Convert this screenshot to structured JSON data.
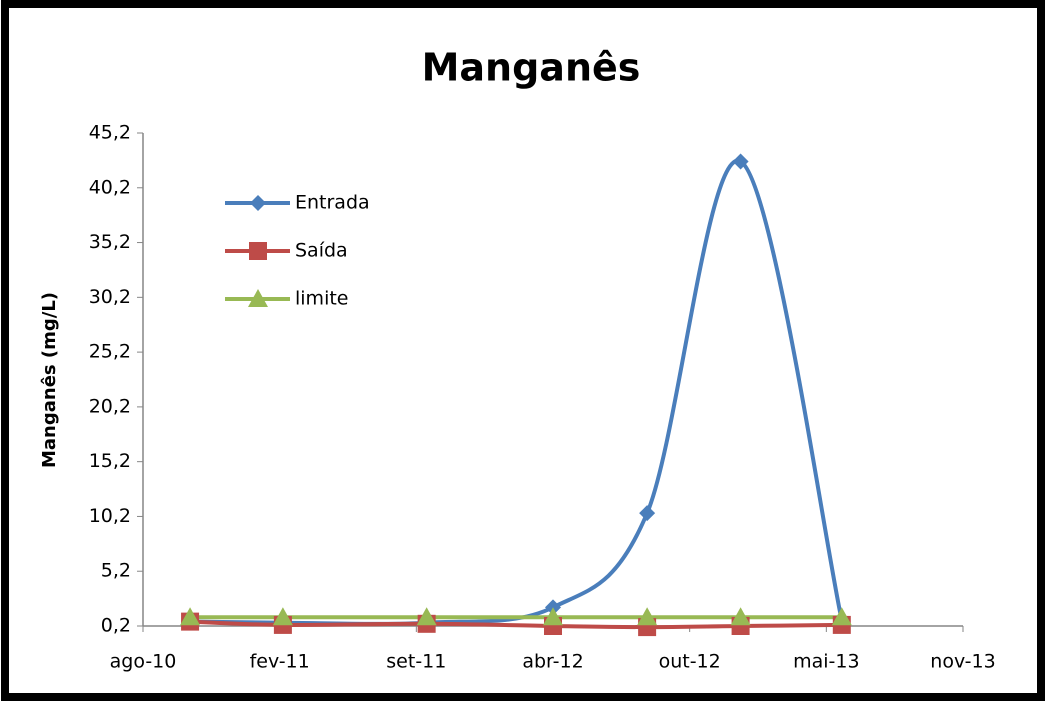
{
  "chart_data": {
    "type": "line",
    "title": "Manganês",
    "y_label": "Manganês (mg/L)",
    "x": [
      40464,
      40608,
      40831,
      41027,
      41173,
      41318,
      41475
    ],
    "series": [
      {
        "name": "Entrada",
        "color": "#4a7ebb",
        "marker": "diamond",
        "values": [
          0.6,
          0.5,
          0.5,
          1.9,
          10.5,
          42.6,
          0.7
        ]
      },
      {
        "name": "Saída",
        "color": "#be4b48",
        "marker": "square",
        "values": [
          0.6,
          0.3,
          0.4,
          0.2,
          0.1,
          0.2,
          0.3
        ]
      },
      {
        "name": "limite",
        "color": "#98b954",
        "marker": "triangle",
        "values": [
          1.0,
          1.0,
          1.0,
          1.0,
          1.0,
          1.0,
          1.0
        ]
      }
    ],
    "xlim": [
      40391,
      41663
    ],
    "xticks": [
      {
        "value": 40391,
        "label": "ago-10"
      },
      {
        "value": 40603,
        "label": "fev-11"
      },
      {
        "value": 40815,
        "label": "set-11"
      },
      {
        "value": 41027,
        "label": "abr-12"
      },
      {
        "value": 41239,
        "label": "out-12"
      },
      {
        "value": 41451,
        "label": "mai-13"
      },
      {
        "value": 41663,
        "label": "nov-13"
      }
    ],
    "ylim": [
      0.2,
      45.2
    ],
    "yticks": [
      {
        "value": 0.2,
        "label": "0,2"
      },
      {
        "value": 5.2,
        "label": "5,2"
      },
      {
        "value": 10.2,
        "label": "10,2"
      },
      {
        "value": 15.2,
        "label": "15,2"
      },
      {
        "value": 20.2,
        "label": "20,2"
      },
      {
        "value": 25.2,
        "label": "25,2"
      },
      {
        "value": 30.2,
        "label": "30,2"
      },
      {
        "value": 35.2,
        "label": "35,2"
      },
      {
        "value": 40.2,
        "label": "40,2"
      },
      {
        "value": 45.2,
        "label": "45,2"
      }
    ],
    "smooth": true,
    "legend": "upper left",
    "grid": false
  }
}
